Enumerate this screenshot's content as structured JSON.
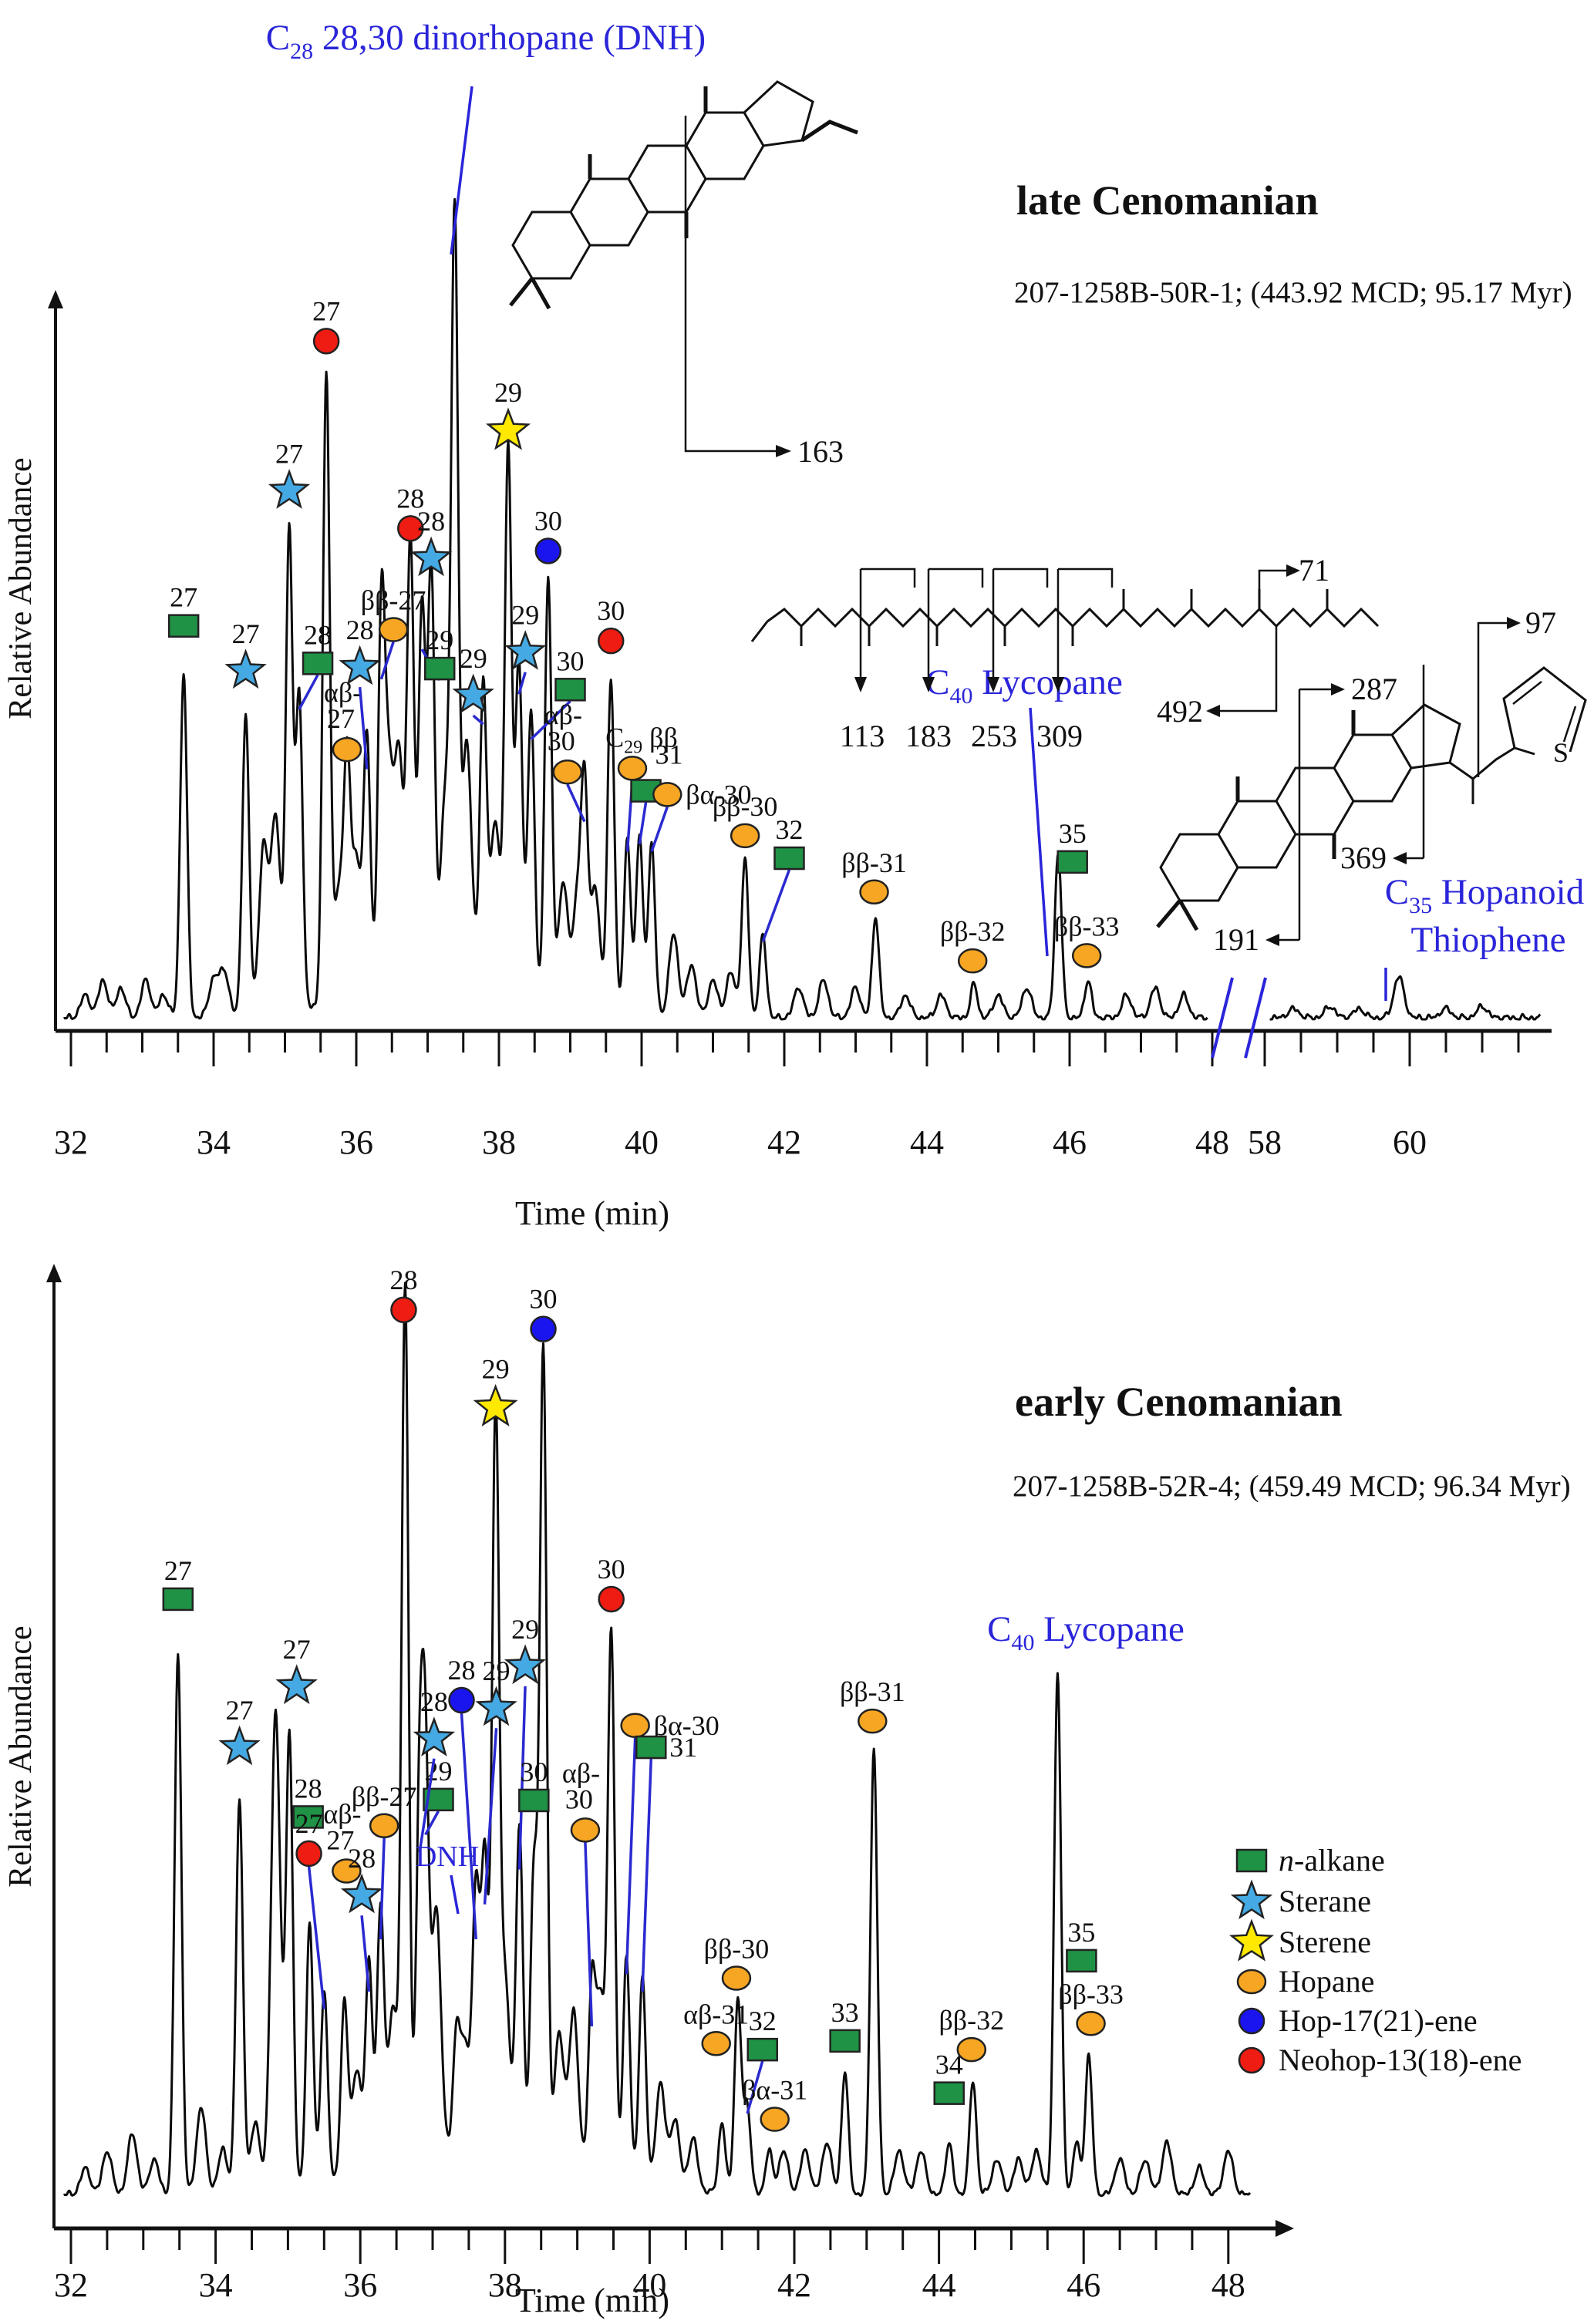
{
  "figure": {
    "top_panel": {
      "title": "late Cenomanian",
      "subtitle": "207-1258B-50R-1; (443.92 MCD; 95.17 Myr)",
      "ylabel": "Relative Abundance",
      "xlabel": "Time (min)",
      "annotations": {
        "dnh": {
          "pre": "C",
          "sub": "28",
          "post": " 28,30 dinorhopane (DNH)"
        },
        "lycopane": {
          "pre": "C",
          "sub": "40",
          "post": " Lycopane"
        },
        "thiophene_line1": {
          "pre": "C",
          "sub": "35",
          "post": " Hopanoid"
        },
        "thiophene_line2": "Thiophene"
      },
      "fragments": {
        "dnh_163": "163",
        "lyco_71": "71",
        "lyco_113": "113",
        "lyco_183": "183",
        "lyco_253": "253",
        "lyco_309": "309",
        "lyco_492": "492",
        "thio_287": "287",
        "thio_369": "369",
        "thio_191": "191",
        "thio_97": "97",
        "thio_S": "S"
      }
    },
    "bottom_panel": {
      "title": "early Cenomanian",
      "subtitle": "207-1258B-52R-4; (459.49 MCD; 96.34 Myr)",
      "ylabel": "Relative Abundance",
      "xlabel": "Time (min)",
      "annotations": {
        "lycopane": {
          "pre": "C",
          "sub": "40",
          "post": " Lycopane"
        },
        "dnh": "DNH"
      },
      "legend": [
        {
          "marker": "square-green",
          "label_italic": "n",
          "label": "-alkane"
        },
        {
          "marker": "star-blue",
          "label": "Sterane"
        },
        {
          "marker": "star-yellow",
          "label": "Sterene"
        },
        {
          "marker": "circle-orange",
          "label": "Hopane"
        },
        {
          "marker": "circle-blue",
          "label": "Hop-17(21)-ene"
        },
        {
          "marker": "circle-red",
          "label": "Neohop-13(18)-ene"
        }
      ]
    },
    "colors": {
      "n_alkane": "#1f9245",
      "sterane": "#45aae3",
      "sterene": "#ffe900",
      "hopane": "#f6a623",
      "hop_17_21_ene": "#1a15ef",
      "neohop_13_18_ene": "#ee1c12",
      "annotation_blue": "#2a25d9",
      "trace": "#0a0a0a"
    }
  },
  "chart_data": [
    {
      "type": "line",
      "title": "late Cenomanian",
      "xlabel": "Time (min)",
      "ylabel": "Relative Abundance",
      "xlim": [
        32,
        61.5
      ],
      "x_break": [
        48,
        58
      ],
      "x_major_ticks": [
        32,
        34,
        36,
        38,
        40,
        42,
        44,
        46,
        48,
        58,
        60
      ],
      "minor_tick_step": 0.5,
      "ylim": [
        0,
        1
      ],
      "peaks": [
        {
          "t": 33.58,
          "h": 0.46,
          "m": "gs",
          "l": "27"
        },
        {
          "t": 34.45,
          "h": 0.4,
          "m": "bs",
          "l": "27"
        },
        {
          "t": 35.06,
          "h": 0.64,
          "m": "bs",
          "l": "27"
        },
        {
          "t": 35.2,
          "h": 0.42,
          "m": "gs",
          "l": "28",
          "mk": [
            35.46,
            0.475
          ],
          "ptr": 1
        },
        {
          "t": 35.58,
          "h": 0.84,
          "m": "rc",
          "l": "27"
        },
        {
          "t": 35.87,
          "h": 0.3,
          "m": "oc",
          "stack": [
            "αβ-",
            "27"
          ],
          "mk": [
            35.87,
            0.36
          ]
        },
        {
          "t": 36.15,
          "h": 0.34,
          "m": "bs",
          "l": "28",
          "mk": [
            36.05,
            0.47
          ],
          "ptr": 1
        },
        {
          "t": 36.35,
          "h": 0.46,
          "m": "oc",
          "l": "ββ-27",
          "mk": [
            36.52,
            0.52
          ],
          "ptr": 1
        },
        {
          "t": 36.76,
          "h": 0.59,
          "m": "rc",
          "l": "28"
        },
        {
          "t": 36.92,
          "h": 0.5,
          "m": "gs",
          "l": "29",
          "mk": [
            37.17,
            0.468
          ],
          "ptr": 1
        },
        {
          "t": 37.05,
          "h": 0.55,
          "m": "bs",
          "l": "28"
        },
        {
          "t": 37.38,
          "h": 1.0,
          "m": "none",
          "l": ""
        },
        {
          "t": 37.78,
          "h": 0.4,
          "m": "bs",
          "l": "29",
          "mk": [
            37.64,
            0.432
          ],
          "ptr": 1
        },
        {
          "t": 38.13,
          "h": 0.72,
          "m": "ys",
          "l": "29"
        },
        {
          "t": 38.28,
          "h": 0.44,
          "m": "bs",
          "l": "29",
          "mk": [
            38.37,
            0.49
          ],
          "ptr": 1
        },
        {
          "t": 38.69,
          "h": 0.56,
          "m": "bc",
          "l": "30"
        },
        {
          "t": 38.45,
          "h": 0.38,
          "m": "gs",
          "l": "30",
          "mk": [
            39.0,
            0.44
          ],
          "ptr": 1
        },
        {
          "t": 39.57,
          "h": 0.44,
          "m": "rc",
          "l": "30"
        },
        {
          "t": 39.2,
          "h": 0.27,
          "m": "oc",
          "stack": [
            "αβ-",
            "30"
          ],
          "mk": [
            38.96,
            0.33
          ],
          "ptr": 1
        },
        {
          "t": 39.8,
          "h": 0.23,
          "m": "oc",
          "parts": [
            "C",
            "29",
            " ββ"
          ],
          "mk": [
            39.87,
            0.335
          ],
          "ptr": 1
        },
        {
          "t": 39.97,
          "h": 0.24,
          "m": "gs",
          "l": "31",
          "mk": [
            40.06,
            0.305
          ],
          "ptr": 1,
          "ldx": 30,
          "ldy": -10
        },
        {
          "t": 40.14,
          "h": 0.23,
          "m": "oc",
          "l": "βα-30",
          "mk": [
            40.36,
            0.3
          ],
          "ptr": 1,
          "side": 1
        },
        {
          "t": 41.45,
          "h": 0.21,
          "m": "oc",
          "l": "ββ-30",
          "mk": [
            41.45,
            0.245
          ]
        },
        {
          "t": 41.7,
          "h": 0.11,
          "m": "gs",
          "l": "32",
          "mk": [
            42.07,
            0.215
          ],
          "ptr": 1
        },
        {
          "t": 43.28,
          "h": 0.135,
          "m": "oc",
          "l": "ββ-31",
          "mk": [
            43.26,
            0.17
          ]
        },
        {
          "t": 44.66,
          "h": 0.045,
          "m": "oc",
          "l": "ββ-32",
          "mk": [
            44.64,
            0.078
          ]
        },
        {
          "t": 45.84,
          "h": 0.22,
          "m": "gs",
          "l": "35",
          "mk": [
            46.04,
            0.21
          ]
        },
        {
          "t": 46.26,
          "h": 0.05,
          "m": "oc",
          "l": "ββ-33",
          "mk": [
            46.24,
            0.085
          ]
        }
      ],
      "minor_peaks": [
        [
          32.2,
          0.03
        ],
        [
          32.45,
          0.05
        ],
        [
          32.7,
          0.04
        ],
        [
          33.05,
          0.05
        ],
        [
          33.3,
          0.03
        ],
        [
          34.0,
          0.05
        ],
        [
          34.15,
          0.06
        ],
        [
          34.7,
          0.22
        ],
        [
          34.87,
          0.26
        ],
        [
          35.75,
          0.14
        ],
        [
          36.0,
          0.18
        ],
        [
          36.45,
          0.28
        ],
        [
          36.6,
          0.3
        ],
        [
          37.25,
          0.25
        ],
        [
          37.55,
          0.32
        ],
        [
          37.95,
          0.22
        ],
        [
          38.9,
          0.16
        ],
        [
          39.1,
          0.14
        ],
        [
          39.35,
          0.16
        ],
        [
          40.45,
          0.11
        ],
        [
          40.7,
          0.07
        ],
        [
          41.0,
          0.05
        ],
        [
          41.25,
          0.06
        ],
        [
          42.2,
          0.04
        ],
        [
          42.55,
          0.05
        ],
        [
          43.0,
          0.04
        ],
        [
          43.7,
          0.03
        ],
        [
          44.2,
          0.03
        ],
        [
          45.0,
          0.03
        ],
        [
          45.4,
          0.04
        ],
        [
          46.8,
          0.03
        ],
        [
          47.2,
          0.04
        ],
        [
          47.6,
          0.03
        ],
        [
          37.3,
          0.05,
          1.2
        ]
      ],
      "post_break_peaks": [
        [
          58.4,
          0.012
        ],
        [
          58.9,
          0.015
        ],
        [
          59.3,
          0.012
        ],
        [
          59.85,
          0.055
        ],
        [
          60.5,
          0.012
        ],
        [
          61.0,
          0.015
        ]
      ],
      "post_break_labeled_peak": {
        "t": 59.85,
        "label": "C35 Hopanoid Thiophene"
      }
    },
    {
      "type": "line",
      "title": "early Cenomanian",
      "xlabel": "Time (min)",
      "ylabel": "Relative Abundance",
      "xlim": [
        32,
        48.3
      ],
      "x_major_ticks": [
        32,
        34,
        36,
        38,
        40,
        42,
        44,
        46,
        48
      ],
      "minor_tick_step": 0.5,
      "ylim": [
        0,
        1
      ],
      "peaks": [
        {
          "t": 33.48,
          "h": 0.62,
          "m": "gs",
          "l": "27"
        },
        {
          "t": 34.33,
          "h": 0.45,
          "m": "bs",
          "l": "27"
        },
        {
          "t": 35.02,
          "h": 0.52,
          "m": "bs",
          "l": "27",
          "mk": [
            35.12,
            0.585
          ]
        },
        {
          "t": 35.3,
          "h": 0.3,
          "m": "gs",
          "l": "28",
          "mk": [
            35.28,
            0.435
          ]
        },
        {
          "t": 35.5,
          "h": 0.22,
          "m": "rc",
          "l": "27",
          "mk": [
            35.29,
            0.393
          ],
          "ptr": 1
        },
        {
          "t": 35.78,
          "h": 0.2,
          "m": "oc",
          "stack": [
            "αβ-",
            "27"
          ],
          "mk": [
            35.81,
            0.373
          ]
        },
        {
          "t": 36.12,
          "h": 0.24,
          "m": "bs",
          "l": "28",
          "mk": [
            36.02,
            0.345
          ],
          "ptr": 1
        },
        {
          "t": 36.28,
          "h": 0.3,
          "m": "oc",
          "l": "ββ-27",
          "mk": [
            36.33,
            0.425
          ],
          "ptr": 1
        },
        {
          "t": 36.62,
          "h": 1.0,
          "m": "rc",
          "l": "28",
          "mk": [
            36.6,
            1.017
          ]
        },
        {
          "t": 36.9,
          "h": 0.42,
          "m": "gs",
          "l": "29",
          "mk": [
            37.08,
            0.455
          ],
          "ptr": 1
        },
        {
          "t": 36.82,
          "h": 0.4,
          "m": "bs",
          "l": "28",
          "mk": [
            37.02,
            0.525
          ],
          "ptr": 1
        },
        {
          "t": 37.33,
          "h": 0.13,
          "m": "none",
          "l": ""
        },
        {
          "t": 37.6,
          "h": 0.3,
          "m": "bc",
          "l": "28",
          "mk": [
            37.4,
            0.569
          ],
          "ptr": 1
        },
        {
          "t": 37.72,
          "h": 0.34,
          "m": "bs",
          "l": "29",
          "mk": [
            37.88,
            0.56
          ],
          "ptr": 1
        },
        {
          "t": 37.87,
          "h": 0.84,
          "m": "ys",
          "l": "29"
        },
        {
          "t": 38.2,
          "h": 0.38,
          "m": "bs",
          "l": "29",
          "mk": [
            38.28,
            0.608
          ],
          "ptr": 1
        },
        {
          "t": 38.4,
          "h": 0.33,
          "m": "gs",
          "l": "30",
          "mk": [
            38.4,
            0.454
          ]
        },
        {
          "t": 38.53,
          "h": 0.93,
          "m": "bc",
          "l": "30"
        },
        {
          "t": 39.2,
          "h": 0.2,
          "m": "oc",
          "stack": [
            "αβ-",
            "30"
          ],
          "mk": [
            39.11,
            0.42
          ],
          "ptr": 1
        },
        {
          "t": 39.47,
          "h": 0.62,
          "m": "rc",
          "l": "30"
        },
        {
          "t": 39.68,
          "h": 0.26,
          "m": "oc",
          "l": "βα-30",
          "mk": [
            39.8,
            0.54
          ],
          "ptr": 1,
          "side": 1
        },
        {
          "t": 39.9,
          "h": 0.24,
          "m": "gs",
          "l": "31",
          "mk": [
            40.02,
            0.515
          ],
          "ptr": 1,
          "side": 1
        },
        {
          "t": 41.0,
          "h": 0.08,
          "m": "oc",
          "l": "αβ-31",
          "mk": [
            40.92,
            0.175
          ]
        },
        {
          "t": 41.22,
          "h": 0.22,
          "m": "oc",
          "l": "ββ-30",
          "mk": [
            41.2,
            0.25
          ]
        },
        {
          "t": 41.35,
          "h": 0.1,
          "m": "gs",
          "l": "32",
          "mk": [
            41.56,
            0.168
          ],
          "ptr": 1
        },
        {
          "t": 41.65,
          "h": 0.05,
          "m": "oc",
          "l": "βα-31",
          "mk": [
            41.73,
            0.088
          ]
        },
        {
          "t": 42.7,
          "h": 0.14,
          "m": "gs",
          "l": "33",
          "mk": [
            42.7,
            0.178
          ]
        },
        {
          "t": 43.1,
          "h": 0.51,
          "m": "oc",
          "l": "ββ-31",
          "mk": [
            43.08,
            0.545
          ]
        },
        {
          "t": 44.14,
          "h": 0.06,
          "m": "gs",
          "l": "34",
          "mk": [
            44.14,
            0.118
          ]
        },
        {
          "t": 44.47,
          "h": 0.13,
          "m": "oc",
          "l": "ββ-32",
          "mk": [
            44.45,
            0.168
          ]
        },
        {
          "t": 45.64,
          "h": 0.6,
          "m": "none",
          "l": ""
        },
        {
          "t": 45.9,
          "h": 0.06,
          "m": "gs",
          "l": "35",
          "mk": [
            45.97,
            0.27
          ]
        },
        {
          "t": 46.07,
          "h": 0.16,
          "m": "oc",
          "l": "ββ-33",
          "mk": [
            46.1,
            0.198
          ]
        }
      ],
      "minor_peaks": [
        [
          32.2,
          0.03
        ],
        [
          32.5,
          0.05
        ],
        [
          32.85,
          0.07
        ],
        [
          33.15,
          0.04
        ],
        [
          33.8,
          0.1
        ],
        [
          34.1,
          0.05
        ],
        [
          34.55,
          0.08
        ],
        [
          34.83,
          0.55
        ],
        [
          35.95,
          0.12
        ],
        [
          36.45,
          0.18
        ],
        [
          37.05,
          0.28
        ],
        [
          37.45,
          0.12
        ],
        [
          38.0,
          0.2
        ],
        [
          38.75,
          0.15
        ],
        [
          38.95,
          0.18
        ],
        [
          39.32,
          0.2
        ],
        [
          40.15,
          0.12
        ],
        [
          40.35,
          0.08
        ],
        [
          40.6,
          0.06
        ],
        [
          41.85,
          0.05
        ],
        [
          42.15,
          0.05
        ],
        [
          42.45,
          0.06
        ],
        [
          43.45,
          0.05
        ],
        [
          43.75,
          0.05
        ],
        [
          44.8,
          0.04
        ],
        [
          45.1,
          0.04
        ],
        [
          45.35,
          0.05
        ],
        [
          46.5,
          0.04
        ],
        [
          46.85,
          0.04
        ],
        [
          47.15,
          0.06
        ],
        [
          47.6,
          0.03
        ],
        [
          48.0,
          0.05
        ],
        [
          37.6,
          0.05,
          1.3
        ]
      ]
    }
  ]
}
